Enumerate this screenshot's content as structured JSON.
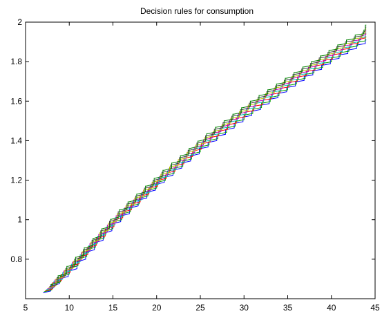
{
  "chart_data": {
    "type": "line",
    "title": "Decision rules for consumption",
    "xlabel": "",
    "ylabel": "",
    "xlim": [
      5,
      45
    ],
    "ylim": [
      0.6,
      2.0
    ],
    "xticks": [
      5,
      10,
      15,
      20,
      25,
      30,
      35,
      40,
      45
    ],
    "yticks": [
      0.8,
      1.0,
      1.2,
      1.4,
      1.6,
      1.8,
      2.0
    ],
    "xtick_labels": [
      "5",
      "10",
      "15",
      "20",
      "25",
      "30",
      "35",
      "40",
      "45"
    ],
    "ytick_labels": [
      "0.8",
      "1",
      "1.2",
      "1.4",
      "1.6",
      "1.8",
      "2"
    ],
    "grid": false,
    "legend": "none",
    "series": [
      {
        "color": "#0000ff",
        "x": [
          7,
          10,
          15,
          20,
          25,
          30,
          35,
          40,
          44
        ],
        "y": [
          0.63,
          0.74,
          0.98,
          1.18,
          1.36,
          1.52,
          1.67,
          1.81,
          1.91
        ]
      },
      {
        "color": "#00a000",
        "x": [
          7,
          10,
          15,
          20,
          25,
          30,
          35,
          40,
          44
        ],
        "y": [
          0.635,
          0.755,
          0.99,
          1.19,
          1.37,
          1.53,
          1.68,
          1.82,
          1.925
        ]
      },
      {
        "color": "#ff0000",
        "x": [
          7,
          10,
          15,
          20,
          25,
          30,
          35,
          40,
          44
        ],
        "y": [
          0.64,
          0.765,
          1.0,
          1.2,
          1.385,
          1.545,
          1.695,
          1.835,
          1.94
        ]
      },
      {
        "color": "#00bfbf",
        "x": [
          7,
          10,
          15,
          20,
          25,
          30,
          35,
          40,
          44
        ],
        "y": [
          0.645,
          0.775,
          1.01,
          1.21,
          1.395,
          1.56,
          1.705,
          1.845,
          1.945
        ]
      },
      {
        "color": "#bf00bf",
        "x": [
          7,
          10,
          15,
          20,
          25,
          30,
          35,
          40,
          44
        ],
        "y": [
          0.65,
          0.785,
          1.02,
          1.22,
          1.405,
          1.57,
          1.715,
          1.855,
          1.955
        ]
      },
      {
        "color": "#bfbf00",
        "x": [
          7,
          10,
          15,
          20,
          25,
          30,
          35,
          40,
          44
        ],
        "y": [
          0.655,
          0.79,
          1.03,
          1.23,
          1.415,
          1.58,
          1.725,
          1.865,
          1.965
        ]
      },
      {
        "color": "#404040",
        "x": [
          7,
          10,
          15,
          20,
          25,
          30,
          35,
          40,
          44
        ],
        "y": [
          0.66,
          0.8,
          1.04,
          1.24,
          1.425,
          1.59,
          1.735,
          1.875,
          1.975
        ]
      },
      {
        "color": "#008000",
        "x": [
          7,
          10,
          15,
          20,
          25,
          30,
          35,
          40,
          44
        ],
        "y": [
          0.67,
          0.81,
          1.05,
          1.25,
          1.435,
          1.6,
          1.745,
          1.885,
          1.985
        ]
      }
    ]
  }
}
